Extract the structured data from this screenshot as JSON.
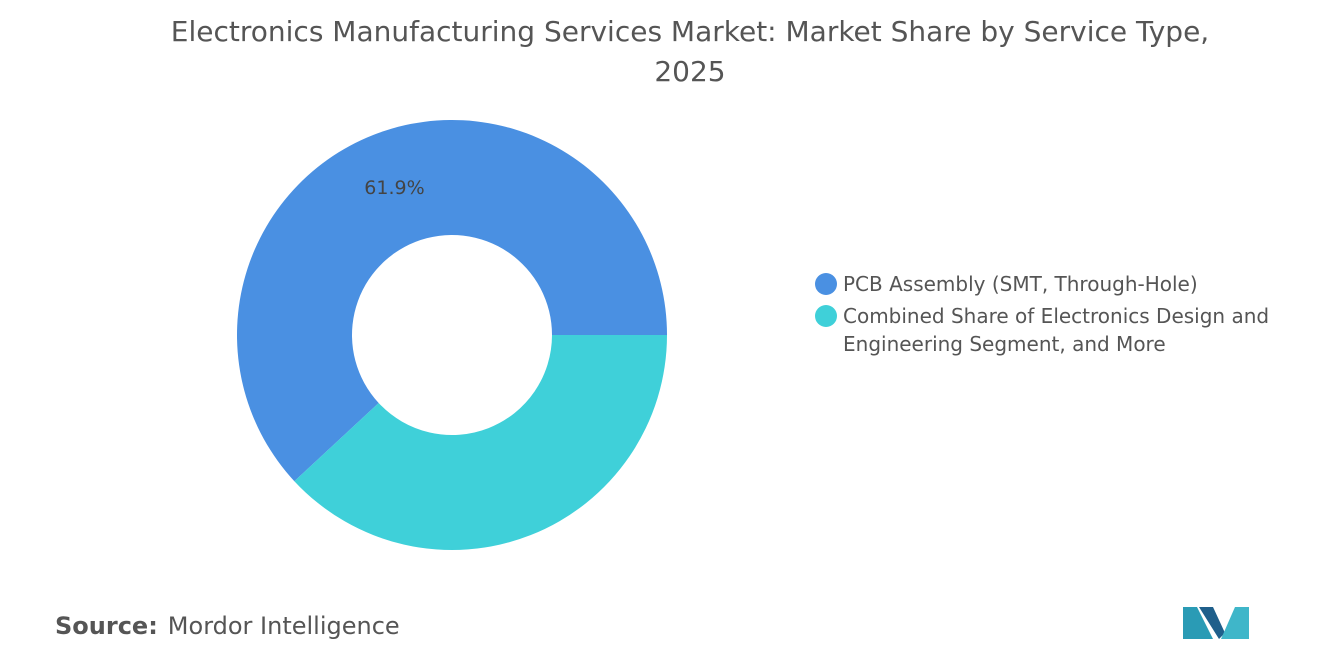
{
  "chart_data": {
    "type": "donut",
    "title": "Electronics Manufacturing Services Market: Market Share by Service Type, 2025",
    "categories": [
      "PCB Assembly (SMT, Through-Hole)",
      "Combined Share of Electronics Design and Engineering Segment, and More"
    ],
    "values": [
      61.9,
      38.1
    ],
    "value_labels": [
      "61.9%",
      null
    ],
    "colors": [
      "#4a90e2",
      "#3fd0d9"
    ],
    "legend": "right"
  },
  "source_label": "Source:",
  "source": "Mordor Intelligence"
}
